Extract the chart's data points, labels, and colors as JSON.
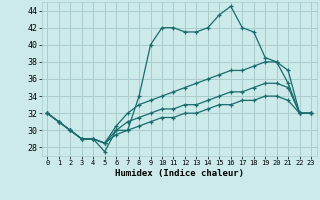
{
  "xlabel": "Humidex (Indice chaleur)",
  "background_color": "#cceaea",
  "grid_color": "#aacccc",
  "line_color": "#1a6b6b",
  "xlim": [
    -0.5,
    23.5
  ],
  "ylim": [
    27,
    45
  ],
  "xticks": [
    0,
    1,
    2,
    3,
    4,
    5,
    6,
    7,
    8,
    9,
    10,
    11,
    12,
    13,
    14,
    15,
    16,
    17,
    18,
    19,
    20,
    21,
    22,
    23
  ],
  "yticks": [
    28,
    30,
    32,
    34,
    36,
    38,
    40,
    42,
    44
  ],
  "series": [
    [
      32,
      31,
      30,
      29,
      29,
      27.5,
      30,
      30,
      34,
      40,
      42,
      42,
      41.5,
      41.5,
      42,
      43.5,
      44.5,
      42,
      41.5,
      38.5,
      38,
      35.5,
      32,
      32
    ],
    [
      32,
      31,
      30,
      29,
      29,
      28.5,
      30.5,
      32,
      33,
      33.5,
      34,
      34.5,
      35,
      35.5,
      36,
      36.5,
      37,
      37,
      37.5,
      38,
      38,
      37,
      32,
      32
    ],
    [
      32,
      31,
      30,
      29,
      29,
      28.5,
      30,
      31,
      31.5,
      32,
      32.5,
      32.5,
      33,
      33,
      33.5,
      34,
      34.5,
      34.5,
      35,
      35.5,
      35.5,
      35,
      32,
      32
    ],
    [
      32,
      31,
      30,
      29,
      29,
      28.5,
      29.5,
      30,
      30.5,
      31,
      31.5,
      31.5,
      32,
      32,
      32.5,
      33,
      33,
      33.5,
      33.5,
      34,
      34,
      33.5,
      32,
      32
    ]
  ]
}
